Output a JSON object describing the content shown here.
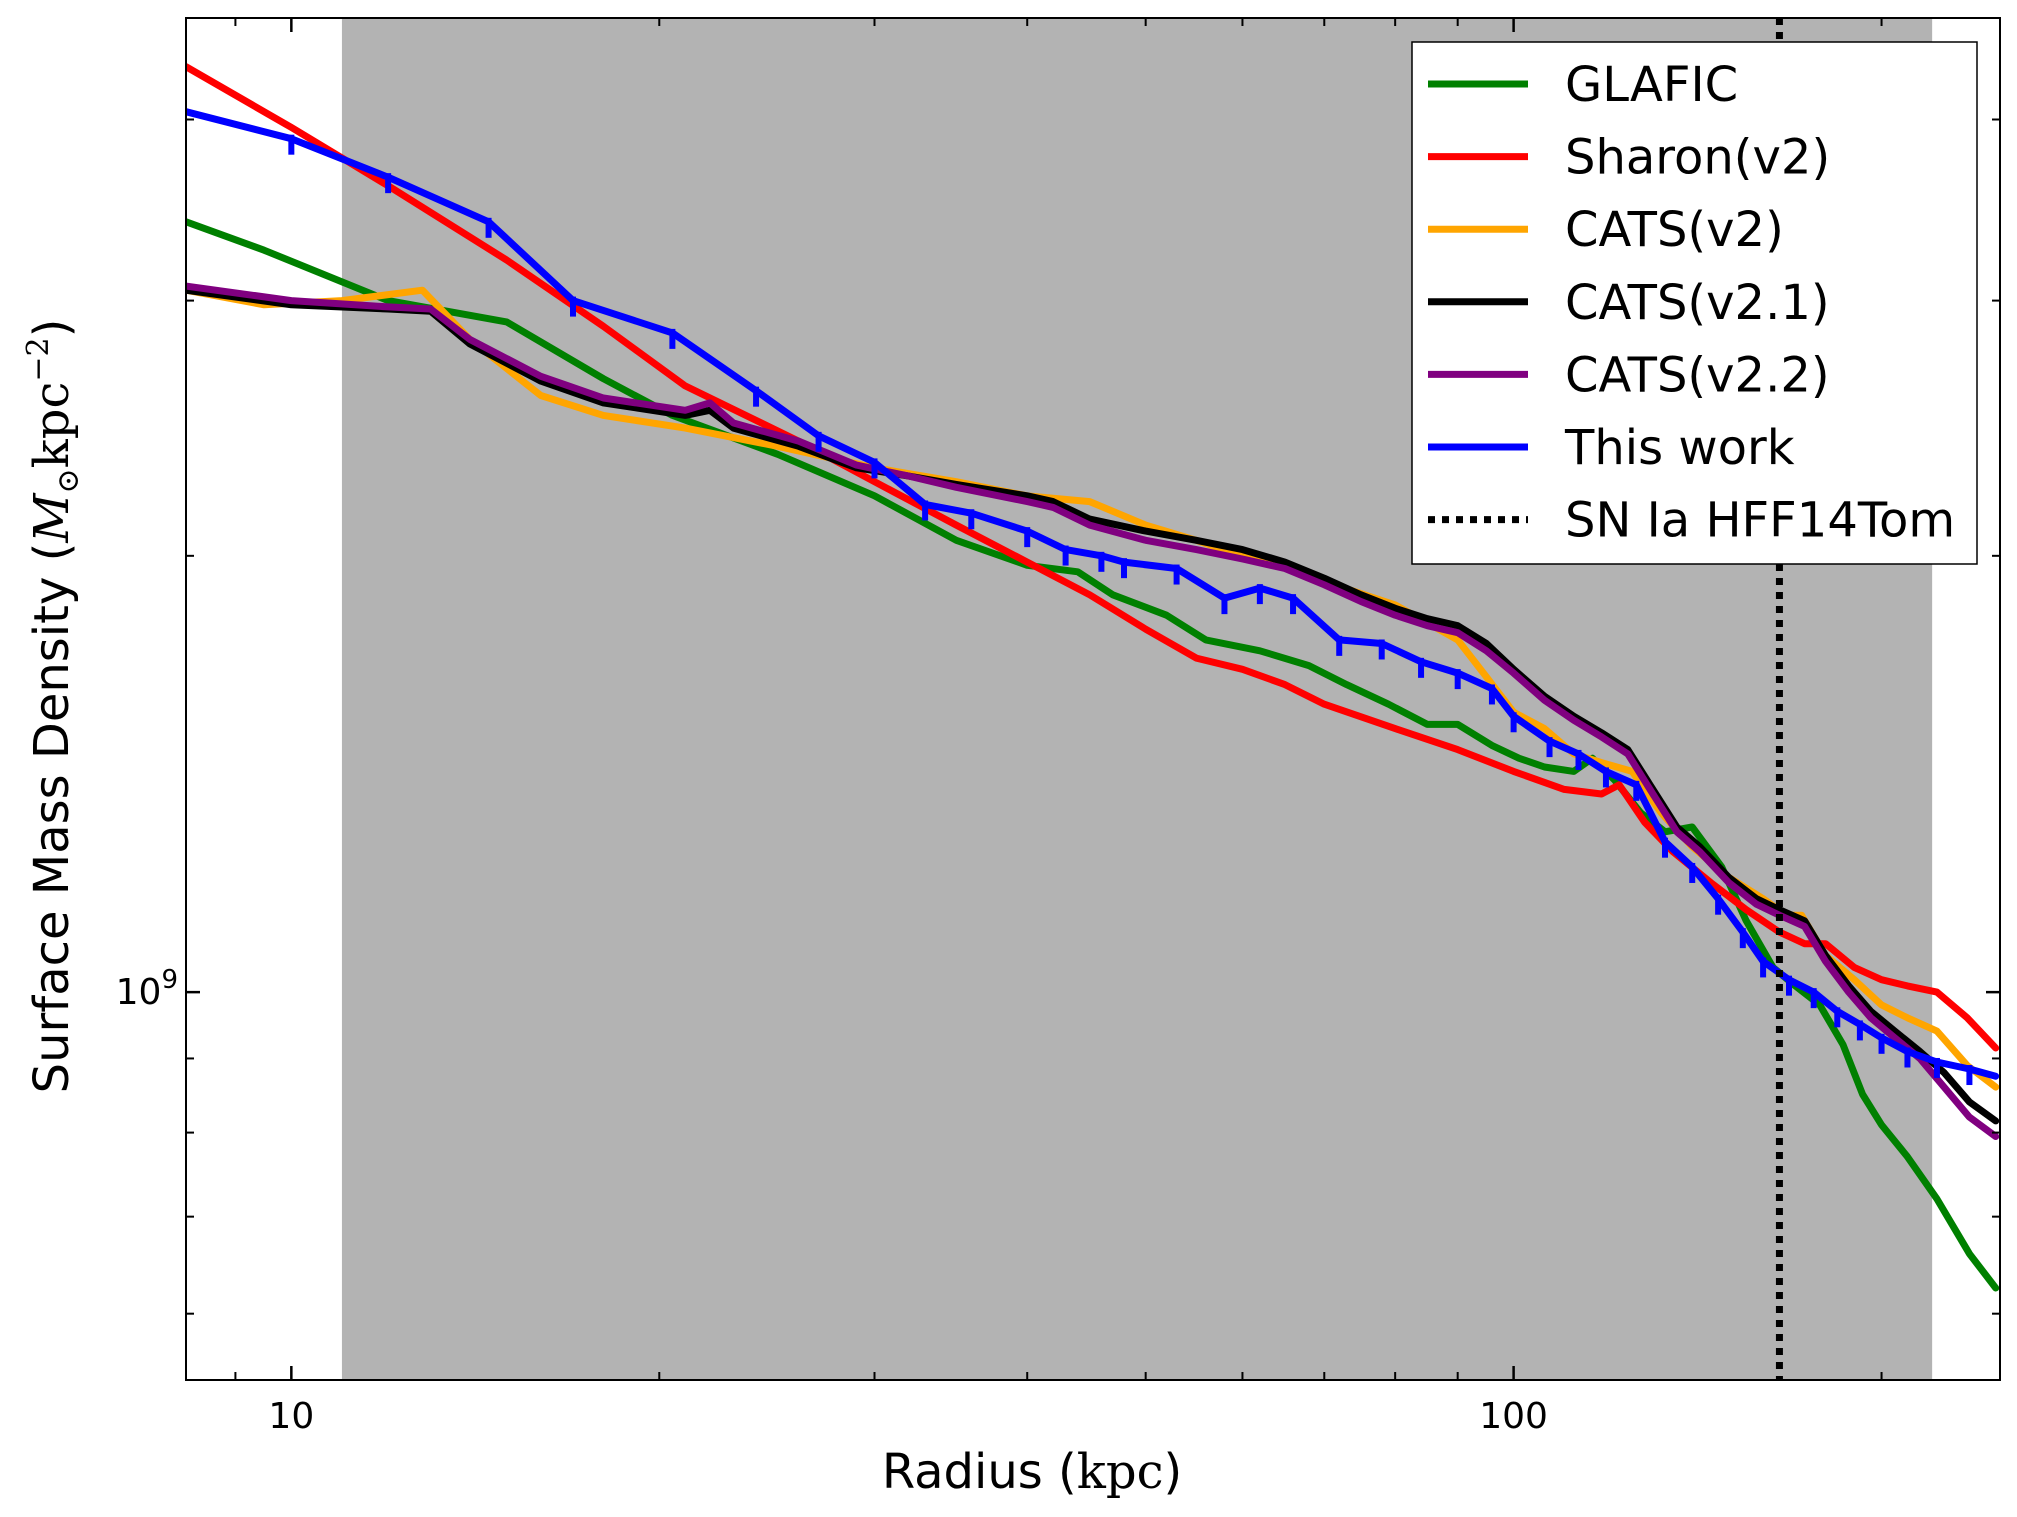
{
  "chart_data": {
    "type": "line",
    "xscale": "log",
    "yscale": "log",
    "xlim": [
      8.2,
      250
    ],
    "ylim": [
      540000000.0,
      4700000000.0
    ],
    "xlabel": {
      "prefix": "Radius (",
      "unit": "kpc",
      "suffix": ")"
    },
    "ylabel": {
      "prefix": "Surface Mass Density (",
      "unit_m": "M",
      "unit_sub": "⊙",
      "unit_kpc": "kpc",
      "unit_sup": "−2",
      "suffix": ")"
    },
    "x_ticks": [
      {
        "value": 10,
        "label": "10"
      },
      {
        "value": 100,
        "label": "100"
      }
    ],
    "y_ticks": [
      {
        "value": 1000000000.0,
        "label": "10",
        "sup": "9"
      }
    ],
    "grid": false,
    "legend": {
      "position": "top-right"
    },
    "shaded_region": {
      "x_start": 11,
      "x_end": 220,
      "color": "#b3b3b3"
    },
    "vline": {
      "x": 165,
      "label": "SN Ia HFF14Tom",
      "style": "dotted",
      "color": "#000000"
    },
    "series": [
      {
        "name": "GLAFIC",
        "color": "#008000",
        "points": [
          [
            8.2,
            3400000000.0
          ],
          [
            9.5,
            3250000000.0
          ],
          [
            12,
            3000000000.0
          ],
          [
            15,
            2900000000.0
          ],
          [
            18,
            2650000000.0
          ],
          [
            20.5,
            2500000000.0
          ],
          [
            25,
            2350000000.0
          ],
          [
            30,
            2200000000.0
          ],
          [
            35,
            2050000000.0
          ],
          [
            40,
            1970000000.0
          ],
          [
            44,
            1950000000.0
          ],
          [
            47,
            1880000000.0
          ],
          [
            52,
            1820000000.0
          ],
          [
            56,
            1750000000.0
          ],
          [
            62,
            1720000000.0
          ],
          [
            68,
            1680000000.0
          ],
          [
            73,
            1630000000.0
          ],
          [
            79,
            1580000000.0
          ],
          [
            85,
            1530000000.0
          ],
          [
            90,
            1530000000.0
          ],
          [
            96,
            1480000000.0
          ],
          [
            101,
            1450000000.0
          ],
          [
            106,
            1430000000.0
          ],
          [
            112,
            1420000000.0
          ],
          [
            116,
            1450000000.0
          ],
          [
            121,
            1400000000.0
          ],
          [
            127,
            1330000000.0
          ],
          [
            133,
            1290000000.0
          ],
          [
            140,
            1300000000.0
          ],
          [
            148,
            1220000000.0
          ],
          [
            155,
            1120000000.0
          ],
          [
            163,
            1040000000.0
          ],
          [
            170,
            1010000000.0
          ],
          [
            178,
            980000000.0
          ],
          [
            186,
            920000000.0
          ],
          [
            193,
            850000000.0
          ],
          [
            200,
            810000000.0
          ],
          [
            210,
            770000000.0
          ],
          [
            222,
            720000000.0
          ],
          [
            236,
            660000000.0
          ],
          [
            248,
            625000000.0
          ]
        ]
      },
      {
        "name": "Sharon(v2)",
        "color": "#ff0000",
        "points": [
          [
            8.2,
            4350000000.0
          ],
          [
            10,
            3950000000.0
          ],
          [
            12,
            3600000000.0
          ],
          [
            15,
            3200000000.0
          ],
          [
            18,
            2880000000.0
          ],
          [
            21,
            2620000000.0
          ],
          [
            26,
            2400000000.0
          ],
          [
            30,
            2250000000.0
          ],
          [
            35,
            2100000000.0
          ],
          [
            40,
            1980000000.0
          ],
          [
            45,
            1880000000.0
          ],
          [
            50,
            1780000000.0
          ],
          [
            55,
            1700000000.0
          ],
          [
            60,
            1670000000.0
          ],
          [
            65,
            1630000000.0
          ],
          [
            70,
            1580000000.0
          ],
          [
            80,
            1520000000.0
          ],
          [
            90,
            1470000000.0
          ],
          [
            100,
            1420000000.0
          ],
          [
            110,
            1380000000.0
          ],
          [
            118,
            1370000000.0
          ],
          [
            122,
            1390000000.0
          ],
          [
            128,
            1310000000.0
          ],
          [
            135,
            1250000000.0
          ],
          [
            145,
            1190000000.0
          ],
          [
            155,
            1140000000.0
          ],
          [
            165,
            1100000000.0
          ],
          [
            173,
            1080000000.0
          ],
          [
            180,
            1080000000.0
          ],
          [
            190,
            1040000000.0
          ],
          [
            200,
            1020000000.0
          ],
          [
            210,
            1010000000.0
          ],
          [
            222,
            1000000000.0
          ],
          [
            235,
            960000000.0
          ],
          [
            248,
            915000000.0
          ]
        ]
      },
      {
        "name": "CATS(v2)",
        "color": "#ffa500",
        "points": [
          [
            8.2,
            3050000000.0
          ],
          [
            9.5,
            2980000000.0
          ],
          [
            11,
            3000000000.0
          ],
          [
            12.8,
            3050000000.0
          ],
          [
            14,
            2820000000.0
          ],
          [
            16,
            2580000000.0
          ],
          [
            18,
            2500000000.0
          ],
          [
            21,
            2450000000.0
          ],
          [
            25,
            2380000000.0
          ],
          [
            30,
            2300000000.0
          ],
          [
            35,
            2250000000.0
          ],
          [
            40,
            2200000000.0
          ],
          [
            45,
            2180000000.0
          ],
          [
            50,
            2100000000.0
          ],
          [
            55,
            2050000000.0
          ],
          [
            60,
            2000000000.0
          ],
          [
            65,
            1970000000.0
          ],
          [
            70,
            1920000000.0
          ],
          [
            80,
            1850000000.0
          ],
          [
            90,
            1750000000.0
          ],
          [
            95,
            1650000000.0
          ],
          [
            100,
            1560000000.0
          ],
          [
            106,
            1520000000.0
          ],
          [
            112,
            1460000000.0
          ],
          [
            118,
            1440000000.0
          ],
          [
            125,
            1420000000.0
          ],
          [
            132,
            1330000000.0
          ],
          [
            140,
            1260000000.0
          ],
          [
            150,
            1200000000.0
          ],
          [
            160,
            1160000000.0
          ],
          [
            167,
            1130000000.0
          ],
          [
            172,
            1130000000.0
          ],
          [
            180,
            1060000000.0
          ],
          [
            190,
            1020000000.0
          ],
          [
            200,
            980000000.0
          ],
          [
            210,
            960000000.0
          ],
          [
            222,
            940000000.0
          ],
          [
            235,
            890000000.0
          ],
          [
            248,
            860000000.0
          ]
        ]
      },
      {
        "name": "CATS(v2.1)",
        "color": "#000000",
        "points": [
          [
            8.2,
            3050000000.0
          ],
          [
            10,
            2980000000.0
          ],
          [
            12,
            2960000000.0
          ],
          [
            13,
            2950000000.0
          ],
          [
            14,
            2800000000.0
          ],
          [
            16,
            2640000000.0
          ],
          [
            18,
            2550000000.0
          ],
          [
            21,
            2500000000.0
          ],
          [
            22,
            2520000000.0
          ],
          [
            23,
            2450000000.0
          ],
          [
            26,
            2380000000.0
          ],
          [
            29,
            2300000000.0
          ],
          [
            32,
            2270000000.0
          ],
          [
            35,
            2240000000.0
          ],
          [
            40,
            2200000000.0
          ],
          [
            42,
            2180000000.0
          ],
          [
            45,
            2120000000.0
          ],
          [
            50,
            2080000000.0
          ],
          [
            55,
            2050000000.0
          ],
          [
            60,
            2020000000.0
          ],
          [
            65,
            1980000000.0
          ],
          [
            70,
            1930000000.0
          ],
          [
            75,
            1880000000.0
          ],
          [
            80,
            1840000000.0
          ],
          [
            85,
            1810000000.0
          ],
          [
            90,
            1790000000.0
          ],
          [
            95,
            1740000000.0
          ],
          [
            100,
            1670000000.0
          ],
          [
            106,
            1600000000.0
          ],
          [
            112,
            1550000000.0
          ],
          [
            118,
            1510000000.0
          ],
          [
            124,
            1470000000.0
          ],
          [
            130,
            1380000000.0
          ],
          [
            136,
            1300000000.0
          ],
          [
            142,
            1260000000.0
          ],
          [
            150,
            1200000000.0
          ],
          [
            158,
            1160000000.0
          ],
          [
            165,
            1140000000.0
          ],
          [
            173,
            1120000000.0
          ],
          [
            180,
            1060000000.0
          ],
          [
            188,
            1010000000.0
          ],
          [
            196,
            970000000.0
          ],
          [
            205,
            940000000.0
          ],
          [
            215,
            910000000.0
          ],
          [
            225,
            880000000.0
          ],
          [
            236,
            840000000.0
          ],
          [
            248,
            815000000.0
          ]
        ]
      },
      {
        "name": "CATS(v2.2)",
        "color": "#800080",
        "points": [
          [
            8.2,
            3070000000.0
          ],
          [
            10,
            3000000000.0
          ],
          [
            12,
            2970000000.0
          ],
          [
            13,
            2960000000.0
          ],
          [
            14,
            2820000000.0
          ],
          [
            16,
            2660000000.0
          ],
          [
            18,
            2570000000.0
          ],
          [
            21,
            2520000000.0
          ],
          [
            22,
            2550000000.0
          ],
          [
            23,
            2470000000.0
          ],
          [
            26,
            2400000000.0
          ],
          [
            29,
            2310000000.0
          ],
          [
            32,
            2270000000.0
          ],
          [
            35,
            2230000000.0
          ],
          [
            40,
            2180000000.0
          ],
          [
            42,
            2160000000.0
          ],
          [
            45,
            2100000000.0
          ],
          [
            50,
            2050000000.0
          ],
          [
            55,
            2020000000.0
          ],
          [
            60,
            1990000000.0
          ],
          [
            65,
            1960000000.0
          ],
          [
            70,
            1910000000.0
          ],
          [
            75,
            1860000000.0
          ],
          [
            80,
            1820000000.0
          ],
          [
            85,
            1790000000.0
          ],
          [
            90,
            1770000000.0
          ],
          [
            95,
            1720000000.0
          ],
          [
            100,
            1660000000.0
          ],
          [
            106,
            1590000000.0
          ],
          [
            112,
            1540000000.0
          ],
          [
            118,
            1500000000.0
          ],
          [
            124,
            1460000000.0
          ],
          [
            130,
            1370000000.0
          ],
          [
            136,
            1290000000.0
          ],
          [
            142,
            1250000000.0
          ],
          [
            150,
            1190000000.0
          ],
          [
            158,
            1150000000.0
          ],
          [
            165,
            1130000000.0
          ],
          [
            173,
            1110000000.0
          ],
          [
            180,
            1050000000.0
          ],
          [
            188,
            1000000000.0
          ],
          [
            196,
            960000000.0
          ],
          [
            205,
            930000000.0
          ],
          [
            215,
            900000000.0
          ],
          [
            225,
            860000000.0
          ],
          [
            236,
            820000000.0
          ],
          [
            248,
            795000000.0
          ]
        ]
      },
      {
        "name": "This work",
        "color": "#0000ff",
        "points": [
          [
            8.2,
            4050000000.0
          ],
          [
            10,
            3880000000.0
          ],
          [
            12,
            3650000000.0
          ],
          [
            14.5,
            3400000000.0
          ],
          [
            17,
            3000000000.0
          ],
          [
            20.5,
            2850000000.0
          ],
          [
            24,
            2600000000.0
          ],
          [
            27,
            2420000000.0
          ],
          [
            30,
            2320000000.0
          ],
          [
            33,
            2170000000.0
          ],
          [
            36,
            2140000000.0
          ],
          [
            40,
            2080000000.0
          ],
          [
            43,
            2020000000.0
          ],
          [
            46,
            2000000000.0
          ],
          [
            48,
            1980000000.0
          ],
          [
            53,
            1960000000.0
          ],
          [
            58,
            1870000000.0
          ],
          [
            62,
            1900000000.0
          ],
          [
            66,
            1870000000.0
          ],
          [
            72,
            1750000000.0
          ],
          [
            78,
            1740000000.0
          ],
          [
            84,
            1690000000.0
          ],
          [
            90,
            1660000000.0
          ],
          [
            96,
            1620000000.0
          ],
          [
            100,
            1550000000.0
          ],
          [
            107,
            1490000000.0
          ],
          [
            113,
            1460000000.0
          ],
          [
            119,
            1420000000.0
          ],
          [
            126,
            1390000000.0
          ],
          [
            133,
            1270000000.0
          ],
          [
            140,
            1220000000.0
          ],
          [
            147,
            1160000000.0
          ],
          [
            154,
            1100000000.0
          ],
          [
            160,
            1050000000.0
          ],
          [
            168,
            1020000000.0
          ],
          [
            176,
            1000000000.0
          ],
          [
            184,
            970000000.0
          ],
          [
            192,
            950000000.0
          ],
          [
            200,
            930000000.0
          ],
          [
            210,
            910000000.0
          ],
          [
            222,
            895000000.0
          ],
          [
            236,
            885000000.0
          ],
          [
            248,
            875000000.0
          ]
        ]
      }
    ]
  }
}
